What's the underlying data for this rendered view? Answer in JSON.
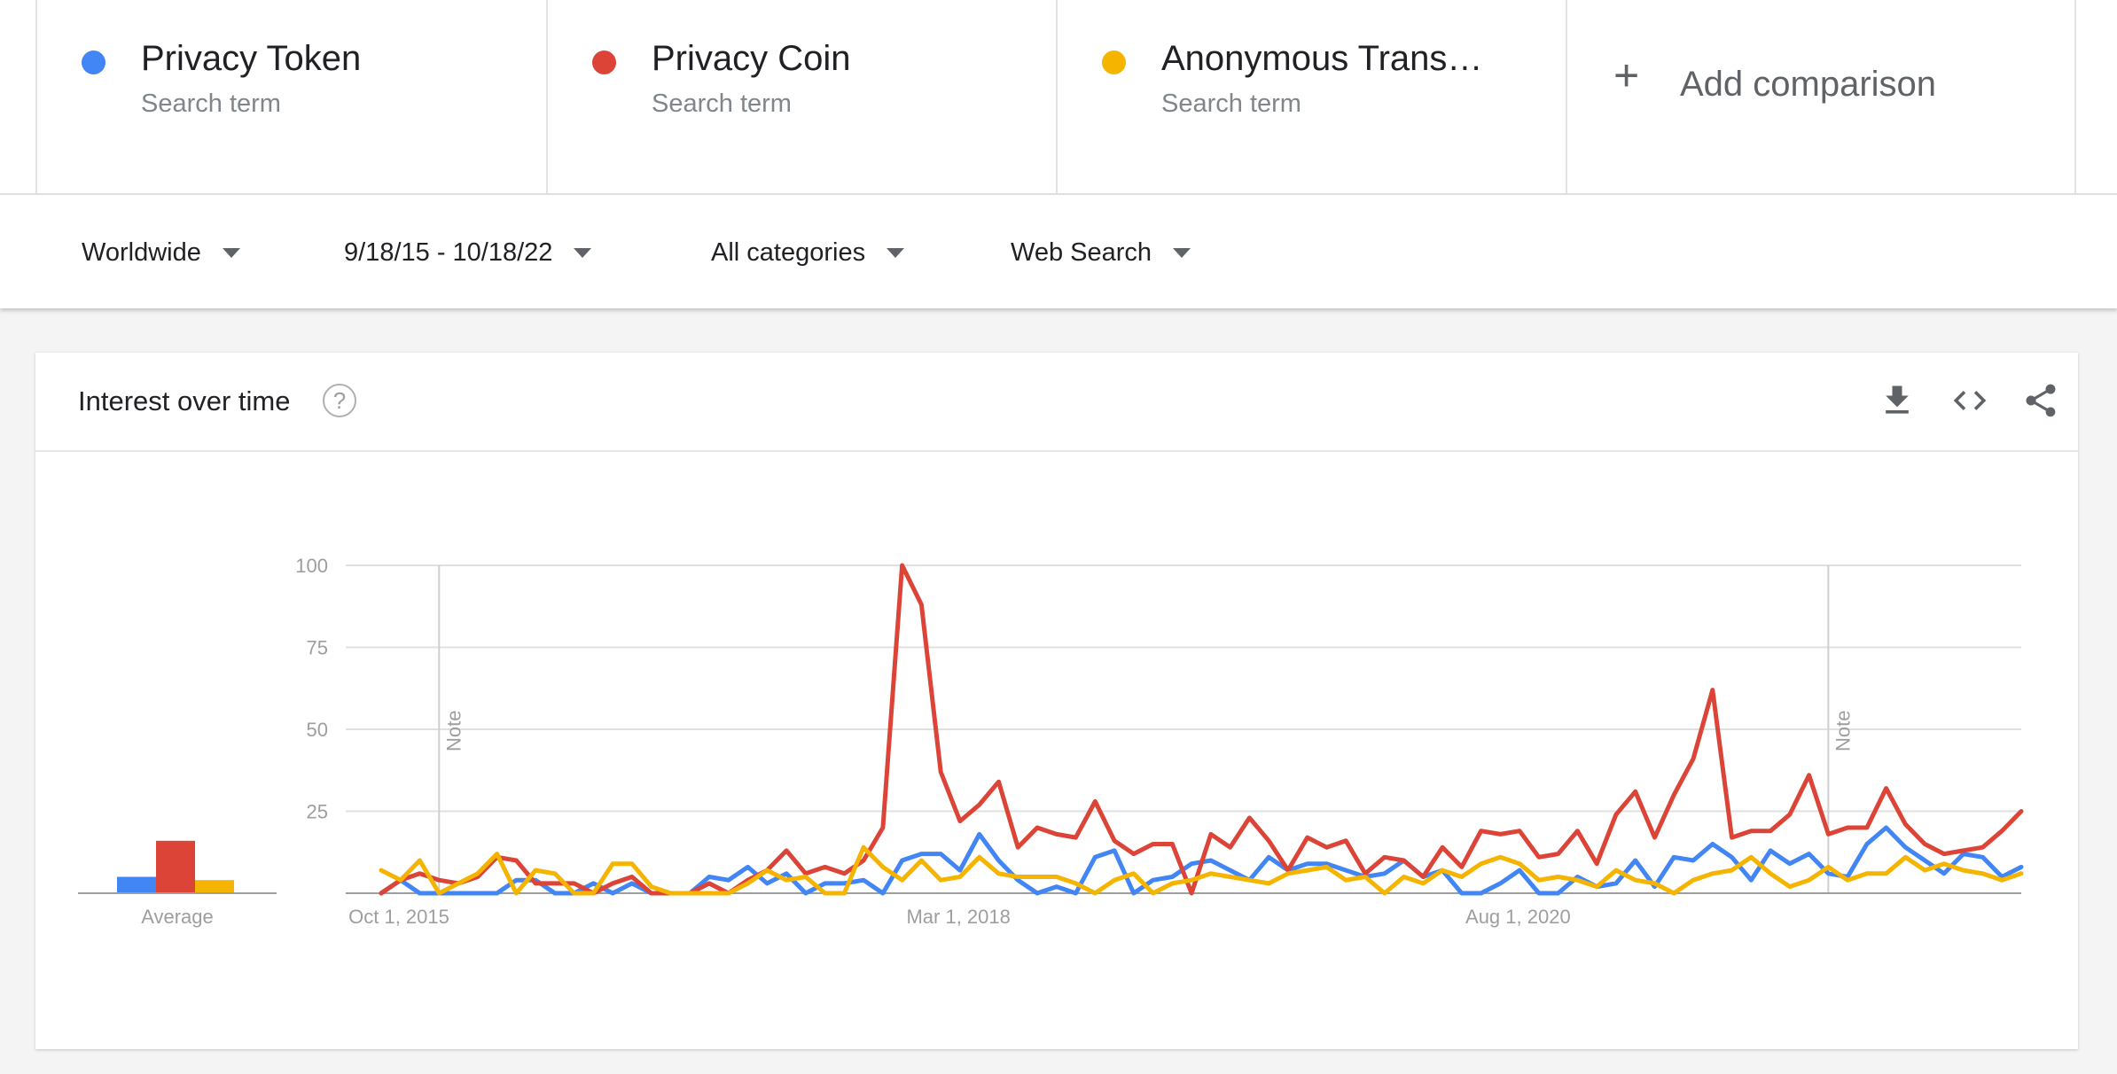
{
  "terms": [
    {
      "name": "Privacy Token",
      "subtitle": "Search term",
      "color": "#4285f4"
    },
    {
      "name": "Privacy Coin",
      "subtitle": "Search term",
      "color": "#db4437"
    },
    {
      "name": "Anonymous Trans…",
      "subtitle": "Search term",
      "color": "#f4b400"
    }
  ],
  "add_comparison": {
    "label": "Add comparison",
    "icon": "plus-icon"
  },
  "filters": {
    "region": "Worldwide",
    "date_range": "9/18/15 - 10/18/22",
    "category": "All categories",
    "search_type": "Web Search"
  },
  "widget": {
    "title": "Interest over time",
    "help_icon": "?",
    "actions": [
      "download-icon",
      "embed-code-icon",
      "share-icon"
    ]
  },
  "chart_data": {
    "type": "line",
    "ylim": [
      0,
      100
    ],
    "yticks": [
      "100",
      "75",
      "50",
      "25"
    ],
    "xticks": [
      {
        "label": "Oct 1, 2015",
        "x": 0
      },
      {
        "label": "Mar 1, 2018",
        "x": 29
      },
      {
        "label": "Aug 1, 2020",
        "x": 58
      }
    ],
    "notes": [
      {
        "label": "Note",
        "x": 3
      },
      {
        "label": "Note",
        "x": 75
      }
    ],
    "average": {
      "label": "Average",
      "values": [
        5,
        16,
        4
      ]
    },
    "series": [
      {
        "name": "Privacy Token",
        "color": "#4285f4",
        "values": [
          0,
          4,
          0,
          0,
          0,
          0,
          0,
          4,
          4,
          0,
          0,
          3,
          0,
          3,
          0,
          0,
          0,
          5,
          4,
          8,
          3,
          6,
          0,
          3,
          3,
          4,
          0,
          10,
          12,
          12,
          7,
          18,
          10,
          4,
          0,
          2,
          0,
          11,
          13,
          0,
          4,
          5,
          9,
          10,
          7,
          4,
          11,
          7,
          9,
          9,
          7,
          5,
          6,
          10,
          5,
          7,
          0,
          0,
          3,
          7,
          0,
          0,
          5,
          2,
          3,
          10,
          2,
          11,
          10,
          15,
          11,
          4,
          13,
          9,
          12,
          6,
          5,
          15,
          20,
          14,
          10,
          6,
          12,
          11,
          5,
          8
        ]
      },
      {
        "name": "Privacy Coin",
        "color": "#db4437",
        "values": [
          0,
          4,
          6,
          4,
          3,
          5,
          11,
          10,
          3,
          3,
          3,
          0,
          3,
          5,
          0,
          0,
          0,
          3,
          0,
          4,
          7,
          13,
          6,
          8,
          6,
          10,
          20,
          100,
          88,
          37,
          22,
          27,
          34,
          14,
          20,
          18,
          17,
          28,
          16,
          12,
          15,
          15,
          0,
          18,
          14,
          23,
          16,
          7,
          17,
          14,
          16,
          6,
          11,
          10,
          5,
          14,
          8,
          19,
          18,
          19,
          11,
          12,
          19,
          9,
          24,
          31,
          17,
          30,
          41,
          62,
          17,
          19,
          19,
          24,
          36,
          18,
          20,
          20,
          32,
          21,
          15,
          12,
          13,
          14,
          19,
          25
        ]
      },
      {
        "name": "Anonymous Trans…",
        "color": "#f4b400",
        "values": [
          7,
          4,
          10,
          0,
          3,
          6,
          12,
          0,
          7,
          6,
          0,
          0,
          9,
          9,
          2,
          0,
          0,
          0,
          0,
          3,
          7,
          4,
          5,
          0,
          0,
          14,
          8,
          4,
          10,
          4,
          5,
          11,
          6,
          5,
          5,
          5,
          3,
          0,
          4,
          6,
          0,
          3,
          4,
          6,
          5,
          4,
          3,
          6,
          7,
          8,
          4,
          5,
          0,
          5,
          3,
          7,
          5,
          9,
          11,
          9,
          4,
          5,
          4,
          2,
          7,
          4,
          3,
          0,
          4,
          6,
          7,
          11,
          6,
          2,
          4,
          8,
          4,
          6,
          6,
          11,
          7,
          9,
          7,
          6,
          4,
          6
        ]
      }
    ]
  }
}
